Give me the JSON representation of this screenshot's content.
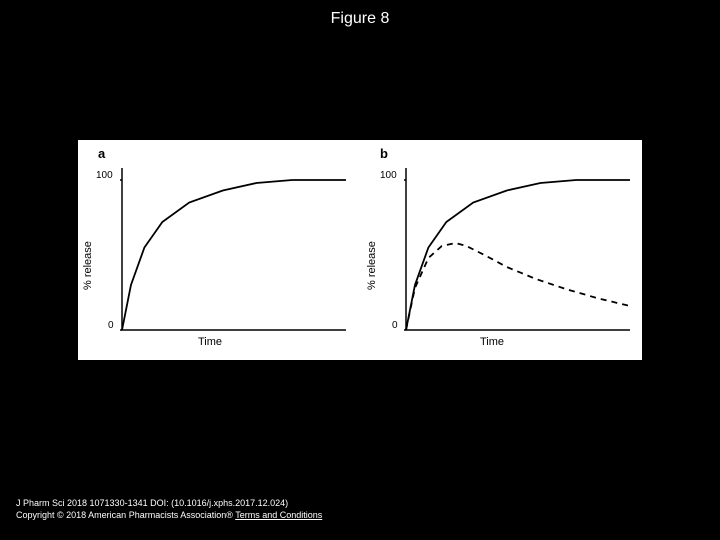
{
  "figure_title": "Figure 8",
  "background_color": "#000000",
  "chart_area_bg": "#ffffff",
  "text_color_light": "#ffffff",
  "text_color_dark": "#000000",
  "panels": {
    "a": {
      "label": "a",
      "ylabel": "% release",
      "xlabel": "Time",
      "ylim": [
        0,
        108
      ],
      "ytick_labels": {
        "top": "100",
        "bottom": "0"
      },
      "axis_color": "#000000",
      "series": [
        {
          "name": "solid",
          "style": "solid",
          "color": "#000000",
          "line_width": 1.8,
          "x": [
            0,
            0.04,
            0.1,
            0.18,
            0.3,
            0.45,
            0.6,
            0.76,
            0.9,
            1.0
          ],
          "y": [
            0,
            30,
            55,
            72,
            85,
            93,
            98,
            100,
            100,
            100
          ]
        }
      ]
    },
    "b": {
      "label": "b",
      "ylabel": "% release",
      "xlabel": "Time",
      "ylim": [
        0,
        108
      ],
      "ytick_labels": {
        "top": "100",
        "bottom": "0"
      },
      "axis_color": "#000000",
      "series": [
        {
          "name": "solid",
          "style": "solid",
          "color": "#000000",
          "line_width": 1.8,
          "x": [
            0,
            0.04,
            0.1,
            0.18,
            0.3,
            0.45,
            0.6,
            0.76,
            0.9,
            1.0
          ],
          "y": [
            0,
            30,
            55,
            72,
            85,
            93,
            98,
            100,
            100,
            100
          ]
        },
        {
          "name": "dashed",
          "style": "dashed",
          "color": "#000000",
          "line_width": 1.8,
          "dash": "6,5",
          "x": [
            0,
            0.04,
            0.1,
            0.16,
            0.22,
            0.27,
            0.35,
            0.45,
            0.58,
            0.72,
            0.86,
            1.0
          ],
          "y": [
            0,
            28,
            48,
            56,
            58,
            56,
            50,
            42,
            34,
            27,
            21,
            16
          ]
        }
      ]
    }
  },
  "footer": {
    "line1": "J Pharm Sci 2018 1071330-1341 DOI: (10.1016/j.xphs.2017.12.024)",
    "line2_prefix": "Copyright © 2018 American Pharmacists Association® ",
    "terms_link_text": "Terms and Conditions"
  }
}
